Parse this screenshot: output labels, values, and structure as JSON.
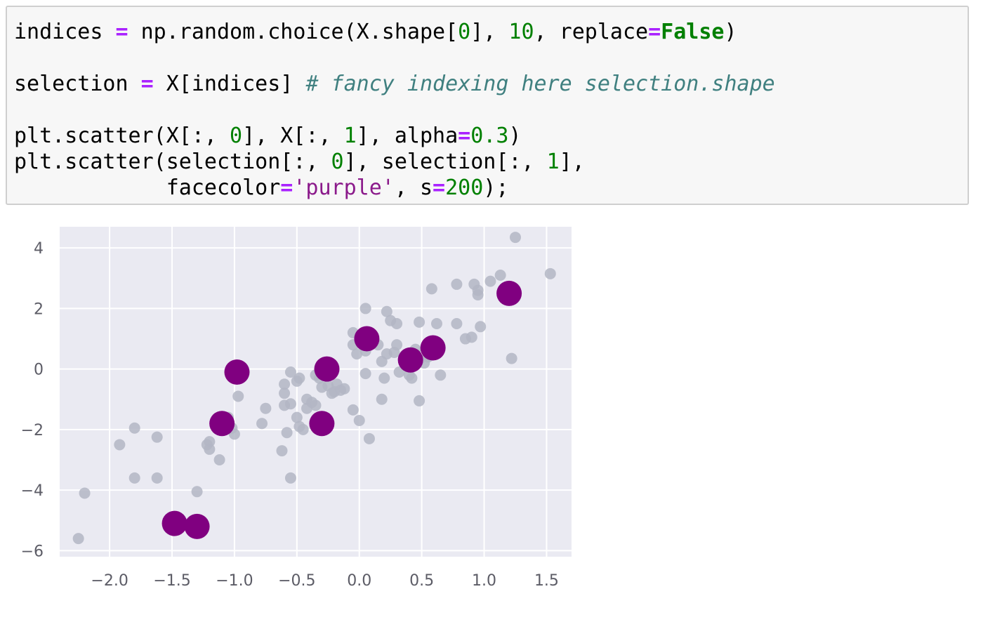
{
  "code_cell": {
    "lines": [
      [
        {
          "t": "indices ",
          "c": "name"
        },
        {
          "t": "=",
          "c": "op"
        },
        {
          "t": " np.random.choice(X.shape[",
          "c": "name"
        },
        {
          "t": "0",
          "c": "num"
        },
        {
          "t": "], ",
          "c": "name"
        },
        {
          "t": "10",
          "c": "num"
        },
        {
          "t": ", replace",
          "c": "name"
        },
        {
          "t": "=",
          "c": "op"
        },
        {
          "t": "False",
          "c": "kw"
        },
        {
          "t": ")",
          "c": "name"
        }
      ],
      [],
      [
        {
          "t": "selection ",
          "c": "name"
        },
        {
          "t": "=",
          "c": "op"
        },
        {
          "t": " X[indices] ",
          "c": "name"
        },
        {
          "t": "# fancy indexing here selection.shape",
          "c": "comment"
        }
      ],
      [],
      [
        {
          "t": "plt.scatter(X[:, ",
          "c": "name"
        },
        {
          "t": "0",
          "c": "num"
        },
        {
          "t": "], X[:, ",
          "c": "name"
        },
        {
          "t": "1",
          "c": "num"
        },
        {
          "t": "], alpha",
          "c": "name"
        },
        {
          "t": "=",
          "c": "op"
        },
        {
          "t": "0.3",
          "c": "num"
        },
        {
          "t": ")",
          "c": "name"
        }
      ],
      [
        {
          "t": "plt.scatter(selection[:, ",
          "c": "name"
        },
        {
          "t": "0",
          "c": "num"
        },
        {
          "t": "], selection[:, ",
          "c": "name"
        },
        {
          "t": "1",
          "c": "num"
        },
        {
          "t": "],",
          "c": "name"
        }
      ],
      [
        {
          "t": "            facecolor",
          "c": "name"
        },
        {
          "t": "=",
          "c": "op"
        },
        {
          "t": "'purple'",
          "c": "str"
        },
        {
          "t": ", s",
          "c": "name"
        },
        {
          "t": "=",
          "c": "op"
        },
        {
          "t": "200",
          "c": "num"
        },
        {
          "t": ");",
          "c": "name"
        }
      ]
    ]
  },
  "chart_data": {
    "type": "scatter",
    "xlim": [
      -2.4,
      1.7
    ],
    "ylim": [
      -6.2,
      4.7
    ],
    "xticks": [
      -2.0,
      -1.5,
      -1.0,
      -0.5,
      0.0,
      0.5,
      1.0,
      1.5
    ],
    "xtick_labels": [
      "−2.0",
      "−1.5",
      "−1.0",
      "−0.5",
      "0.0",
      "0.5",
      "1.0",
      "1.5"
    ],
    "yticks": [
      4,
      2,
      0,
      -2,
      -4,
      -6
    ],
    "ytick_labels": [
      "4",
      "2",
      "0",
      "−2",
      "−4",
      "−6"
    ],
    "grid": true,
    "background_color": "#eaeaf2",
    "series": [
      {
        "color": "#b3b6c4",
        "size": "small",
        "points": [
          [
            -2.25,
            -5.6
          ],
          [
            -2.2,
            -4.1
          ],
          [
            -1.92,
            -2.5
          ],
          [
            -1.8,
            -1.95
          ],
          [
            -1.8,
            -3.6
          ],
          [
            -1.62,
            -2.25
          ],
          [
            -1.62,
            -3.6
          ],
          [
            -1.3,
            -4.05
          ],
          [
            -1.22,
            -2.5
          ],
          [
            -1.2,
            -2.4
          ],
          [
            -1.2,
            -2.65
          ],
          [
            -1.12,
            -3.0
          ],
          [
            -1.05,
            -1.6
          ],
          [
            -1.02,
            -1.95
          ],
          [
            -1.0,
            -2.15
          ],
          [
            -0.97,
            -0.9
          ],
          [
            -0.78,
            -1.8
          ],
          [
            -0.75,
            -1.3
          ],
          [
            -0.62,
            -2.7
          ],
          [
            -0.6,
            -1.2
          ],
          [
            -0.6,
            -0.5
          ],
          [
            -0.6,
            -0.8
          ],
          [
            -0.58,
            -2.1
          ],
          [
            -0.55,
            -3.6
          ],
          [
            -0.55,
            -1.15
          ],
          [
            -0.55,
            -0.1
          ],
          [
            -0.5,
            -0.4
          ],
          [
            -0.48,
            -0.3
          ],
          [
            -0.5,
            -1.6
          ],
          [
            -0.48,
            -1.9
          ],
          [
            -0.45,
            -2.0
          ],
          [
            -0.42,
            -1.0
          ],
          [
            -0.42,
            -1.3
          ],
          [
            -0.38,
            -1.1
          ],
          [
            -0.35,
            -1.2
          ],
          [
            -0.35,
            -0.2
          ],
          [
            -0.32,
            -0.3
          ],
          [
            -0.3,
            -0.6
          ],
          [
            -0.25,
            -0.55
          ],
          [
            -0.22,
            -0.8
          ],
          [
            -0.2,
            -0.75
          ],
          [
            -0.18,
            -0.5
          ],
          [
            -0.15,
            -0.7
          ],
          [
            -0.12,
            -0.65
          ],
          [
            -0.05,
            -1.35
          ],
          [
            -0.05,
            1.2
          ],
          [
            -0.05,
            0.8
          ],
          [
            -0.02,
            0.5
          ],
          [
            0.0,
            -1.7
          ],
          [
            0.03,
            0.9
          ],
          [
            0.05,
            2.0
          ],
          [
            0.05,
            0.6
          ],
          [
            0.05,
            -0.15
          ],
          [
            0.08,
            -2.3
          ],
          [
            0.15,
            0.8
          ],
          [
            0.18,
            -1.0
          ],
          [
            0.18,
            0.25
          ],
          [
            0.2,
            -0.3
          ],
          [
            0.22,
            0.5
          ],
          [
            0.22,
            1.9
          ],
          [
            0.25,
            1.6
          ],
          [
            0.28,
            0.55
          ],
          [
            0.3,
            0.8
          ],
          [
            0.3,
            1.5
          ],
          [
            0.32,
            -0.1
          ],
          [
            0.38,
            0.2
          ],
          [
            0.4,
            -0.2
          ],
          [
            0.42,
            -0.3
          ],
          [
            0.45,
            0.65
          ],
          [
            0.48,
            0.3
          ],
          [
            0.48,
            1.55
          ],
          [
            0.48,
            -1.05
          ],
          [
            0.52,
            0.2
          ],
          [
            0.55,
            0.4
          ],
          [
            0.58,
            2.65
          ],
          [
            0.62,
            1.5
          ],
          [
            0.65,
            -0.2
          ],
          [
            0.78,
            1.5
          ],
          [
            0.78,
            2.8
          ],
          [
            0.85,
            1.0
          ],
          [
            0.9,
            1.05
          ],
          [
            0.92,
            2.8
          ],
          [
            0.95,
            2.45
          ],
          [
            0.95,
            2.6
          ],
          [
            0.97,
            1.4
          ],
          [
            1.05,
            2.9
          ],
          [
            1.13,
            3.1
          ],
          [
            1.22,
            0.35
          ],
          [
            1.25,
            4.35
          ],
          [
            1.53,
            3.15
          ]
        ]
      },
      {
        "color": "#800080",
        "size": "large",
        "points": [
          [
            -1.48,
            -5.1
          ],
          [
            -1.3,
            -5.2
          ],
          [
            -1.1,
            -1.8
          ],
          [
            -0.98,
            -0.1
          ],
          [
            -0.3,
            -1.8
          ],
          [
            -0.26,
            0.0
          ],
          [
            0.06,
            1.0
          ],
          [
            0.41,
            0.3
          ],
          [
            0.59,
            0.7
          ],
          [
            1.2,
            2.5
          ]
        ]
      }
    ]
  }
}
